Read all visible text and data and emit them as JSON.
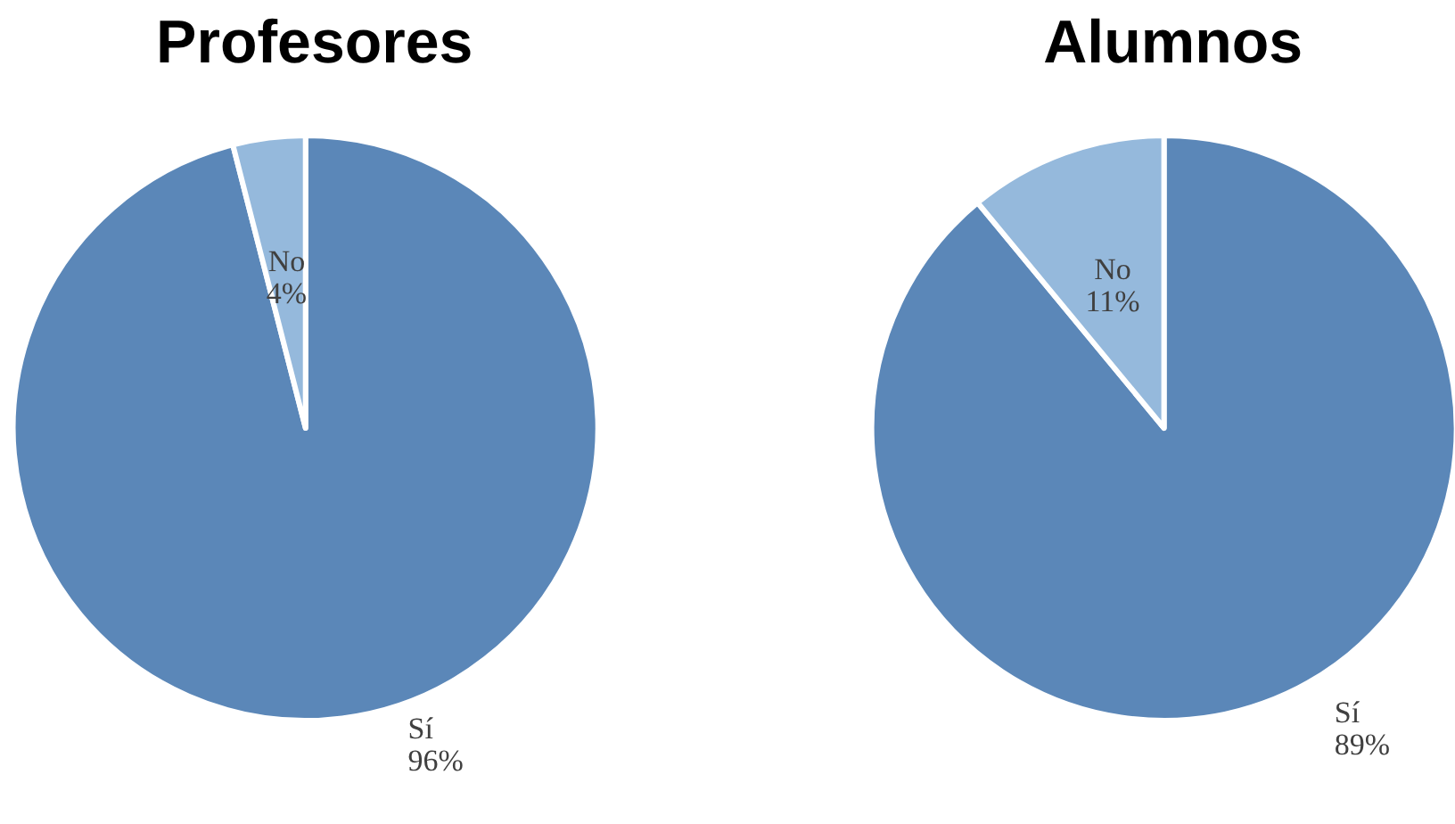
{
  "chart_data": [
    {
      "type": "pie",
      "title": "Profesores",
      "categories": [
        "Sí",
        "No"
      ],
      "values": [
        96,
        4
      ],
      "colors": [
        "#5b87b8",
        "#95b9dc"
      ],
      "value_labels": [
        "96%",
        "4%"
      ],
      "legend": false
    },
    {
      "type": "pie",
      "title": "Alumnos",
      "categories": [
        "Sí",
        "No"
      ],
      "values": [
        89,
        11
      ],
      "colors": [
        "#5b87b8",
        "#95b9dc"
      ],
      "value_labels": [
        "89%",
        "11%"
      ],
      "legend": false
    }
  ]
}
